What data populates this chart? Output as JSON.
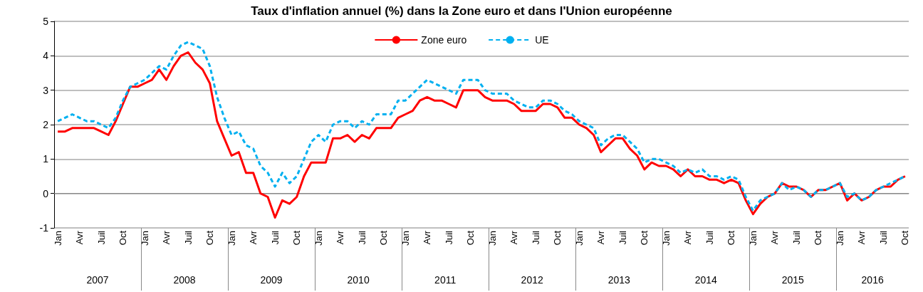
{
  "chart_data": {
    "type": "line",
    "title": "Taux d'inflation annuel (%) dans la Zone euro et dans l'Union européenne",
    "categories": [
      "Jan",
      null,
      null,
      "Avr",
      null,
      null,
      "Juil",
      null,
      null,
      "Oct",
      null,
      null,
      "Jan",
      null,
      null,
      "Avr",
      null,
      null,
      "Juil",
      null,
      null,
      "Oct",
      null,
      null,
      "Jan",
      null,
      null,
      "Avr",
      null,
      null,
      "Juil",
      null,
      null,
      "Oct",
      null,
      null,
      "Jan",
      null,
      null,
      "Avr",
      null,
      null,
      "Juil",
      null,
      null,
      "Oct",
      null,
      null,
      "Jan",
      null,
      null,
      "Avr",
      null,
      null,
      "Juil",
      null,
      null,
      "Oct",
      null,
      null,
      "Jan",
      null,
      null,
      "Avr",
      null,
      null,
      "Juil",
      null,
      null,
      "Oct",
      null,
      null,
      "Jan",
      null,
      null,
      "Avr",
      null,
      null,
      "Juil",
      null,
      null,
      "Oct",
      null,
      null,
      "Jan",
      null,
      null,
      "Avr",
      null,
      null,
      "Juil",
      null,
      null,
      "Oct",
      null,
      null,
      "Jan",
      null,
      null,
      "Avr",
      null,
      null,
      "Juil",
      null,
      null,
      "Oct",
      null,
      null,
      "Jan",
      null,
      null,
      "Avr",
      null,
      null,
      "Juil",
      null,
      null,
      "Oct"
    ],
    "series": [
      {
        "name": "Zone euro",
        "color": "#ff0000",
        "line_style": "solid",
        "values": [
          1.8,
          1.8,
          1.9,
          1.9,
          1.9,
          1.9,
          1.8,
          1.7,
          2.1,
          2.6,
          3.1,
          3.1,
          3.2,
          3.3,
          3.6,
          3.3,
          3.7,
          4.0,
          4.1,
          3.8,
          3.6,
          3.2,
          2.1,
          1.6,
          1.1,
          1.2,
          0.6,
          0.6,
          0.0,
          -0.1,
          -0.7,
          -0.2,
          -0.3,
          -0.1,
          0.5,
          0.9,
          0.9,
          0.9,
          1.6,
          1.6,
          1.7,
          1.5,
          1.7,
          1.6,
          1.9,
          1.9,
          1.9,
          2.2,
          2.3,
          2.4,
          2.7,
          2.8,
          2.7,
          2.7,
          2.6,
          2.5,
          3.0,
          3.0,
          3.0,
          2.8,
          2.7,
          2.7,
          2.7,
          2.6,
          2.4,
          2.4,
          2.4,
          2.6,
          2.6,
          2.5,
          2.2,
          2.2,
          2.0,
          1.9,
          1.7,
          1.2,
          1.4,
          1.6,
          1.6,
          1.3,
          1.1,
          0.7,
          0.9,
          0.8,
          0.8,
          0.7,
          0.5,
          0.7,
          0.5,
          0.5,
          0.4,
          0.4,
          0.3,
          0.4,
          0.3,
          -0.2,
          -0.6,
          -0.3,
          -0.1,
          0.0,
          0.3,
          0.2,
          0.2,
          0.1,
          -0.1,
          0.1,
          0.1,
          0.2,
          0.3,
          -0.2,
          0.0,
          -0.2,
          -0.1,
          0.1,
          0.2,
          0.2,
          0.4,
          0.5
        ]
      },
      {
        "name": "UE",
        "color": "#00b0f0",
        "line_style": "dashed",
        "values": [
          2.1,
          2.2,
          2.3,
          2.2,
          2.1,
          2.1,
          2.0,
          1.9,
          2.2,
          2.7,
          3.1,
          3.2,
          3.3,
          3.5,
          3.7,
          3.6,
          4.0,
          4.3,
          4.4,
          4.3,
          4.2,
          3.7,
          2.8,
          2.2,
          1.7,
          1.8,
          1.4,
          1.3,
          0.8,
          0.6,
          0.2,
          0.6,
          0.3,
          0.5,
          1.0,
          1.5,
          1.7,
          1.5,
          2.0,
          2.1,
          2.1,
          1.9,
          2.1,
          2.0,
          2.3,
          2.3,
          2.3,
          2.7,
          2.7,
          2.9,
          3.1,
          3.3,
          3.2,
          3.1,
          3.0,
          2.9,
          3.3,
          3.3,
          3.3,
          3.0,
          2.9,
          2.9,
          2.9,
          2.7,
          2.6,
          2.5,
          2.5,
          2.7,
          2.7,
          2.6,
          2.4,
          2.3,
          2.1,
          2.0,
          1.9,
          1.4,
          1.6,
          1.7,
          1.7,
          1.5,
          1.3,
          0.9,
          1.0,
          1.0,
          0.9,
          0.8,
          0.6,
          0.7,
          0.6,
          0.7,
          0.5,
          0.5,
          0.4,
          0.5,
          0.4,
          -0.1,
          -0.5,
          -0.2,
          -0.1,
          0.0,
          0.3,
          0.1,
          0.2,
          0.1,
          -0.1,
          0.1,
          0.1,
          0.2,
          0.3,
          -0.1,
          0.0,
          -0.2,
          -0.1,
          0.1,
          0.2,
          0.3,
          0.4,
          0.5
        ]
      }
    ],
    "ylim": [
      -1,
      5
    ],
    "yticks": [
      -1,
      0,
      1,
      2,
      3,
      4,
      5
    ],
    "grid": "y",
    "legend": "top",
    "marker": "none",
    "annotations": [
      "2007",
      "2008",
      "2009",
      "2010",
      "2011",
      "2012",
      "2013",
      "2014",
      "2015",
      "2016"
    ]
  }
}
